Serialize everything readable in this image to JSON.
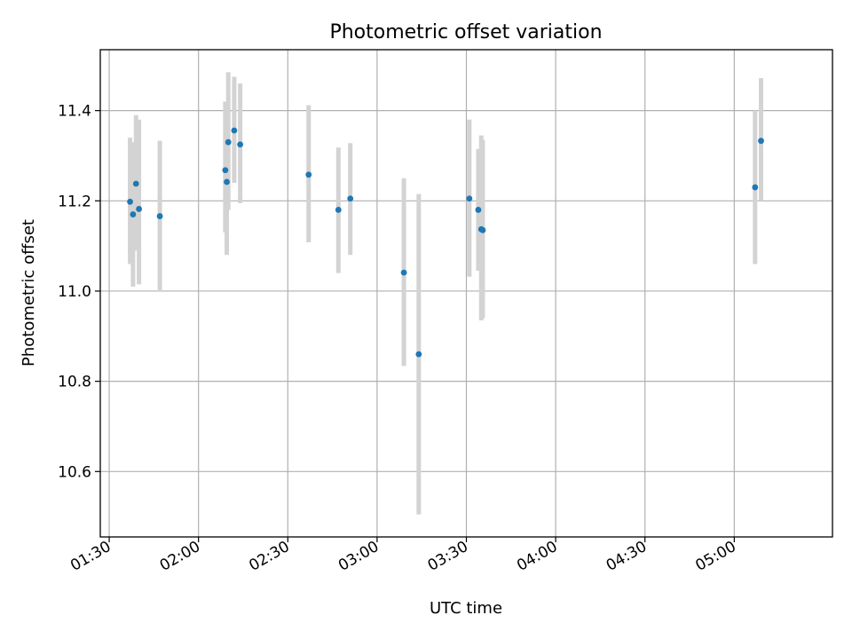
{
  "chart_data": {
    "type": "scatter",
    "title": "Photometric offset variation",
    "xlabel": "UTC time",
    "ylabel": "Photometric offset",
    "xlim": [
      "01:27",
      "05:33"
    ],
    "ylim": [
      10.455,
      11.535
    ],
    "x_ticks": [
      "01:30",
      "02:00",
      "02:30",
      "03:00",
      "03:30",
      "04:00",
      "04:30",
      "05:00"
    ],
    "y_ticks": [
      10.6,
      10.8,
      11.0,
      11.2,
      11.4
    ],
    "grid": true,
    "colors": {
      "point": "#1f77b4",
      "errorbar": "#d3d3d3",
      "grid": "#b0b0b0"
    },
    "points": [
      {
        "x": "01:37",
        "y": 11.198,
        "lo": 11.06,
        "hi": 11.34
      },
      {
        "x": "01:38",
        "y": 11.17,
        "lo": 11.01,
        "hi": 11.33
      },
      {
        "x": "01:39",
        "y": 11.238,
        "lo": 11.09,
        "hi": 11.39
      },
      {
        "x": "01:40",
        "y": 11.182,
        "lo": 11.015,
        "hi": 11.38
      },
      {
        "x": "01:47",
        "y": 11.166,
        "lo": 11.0,
        "hi": 11.333
      },
      {
        "x": "02:09",
        "y": 11.268,
        "lo": 11.13,
        "hi": 11.42
      },
      {
        "x": "02:09.5",
        "y": 11.242,
        "lo": 11.08,
        "hi": 11.41
      },
      {
        "x": "02:10",
        "y": 11.33,
        "lo": 11.18,
        "hi": 11.485
      },
      {
        "x": "02:12",
        "y": 11.356,
        "lo": 11.24,
        "hi": 11.475
      },
      {
        "x": "02:14",
        "y": 11.325,
        "lo": 11.195,
        "hi": 11.46
      },
      {
        "x": "02:37",
        "y": 11.258,
        "lo": 11.108,
        "hi": 11.412
      },
      {
        "x": "02:47",
        "y": 11.18,
        "lo": 11.04,
        "hi": 11.318
      },
      {
        "x": "02:51",
        "y": 11.205,
        "lo": 11.08,
        "hi": 11.328
      },
      {
        "x": "03:09",
        "y": 11.041,
        "lo": 10.834,
        "hi": 11.25
      },
      {
        "x": "03:14",
        "y": 10.86,
        "lo": 10.505,
        "hi": 11.215
      },
      {
        "x": "03:31",
        "y": 11.205,
        "lo": 11.032,
        "hi": 11.38
      },
      {
        "x": "03:34",
        "y": 11.18,
        "lo": 11.045,
        "hi": 11.315
      },
      {
        "x": "03:35",
        "y": 11.137,
        "lo": 10.935,
        "hi": 11.345
      },
      {
        "x": "03:35.5",
        "y": 11.135,
        "lo": 10.94,
        "hi": 11.335
      },
      {
        "x": "05:07",
        "y": 11.23,
        "lo": 11.06,
        "hi": 11.4
      },
      {
        "x": "05:09",
        "y": 11.333,
        "lo": 11.2,
        "hi": 11.472
      }
    ]
  }
}
